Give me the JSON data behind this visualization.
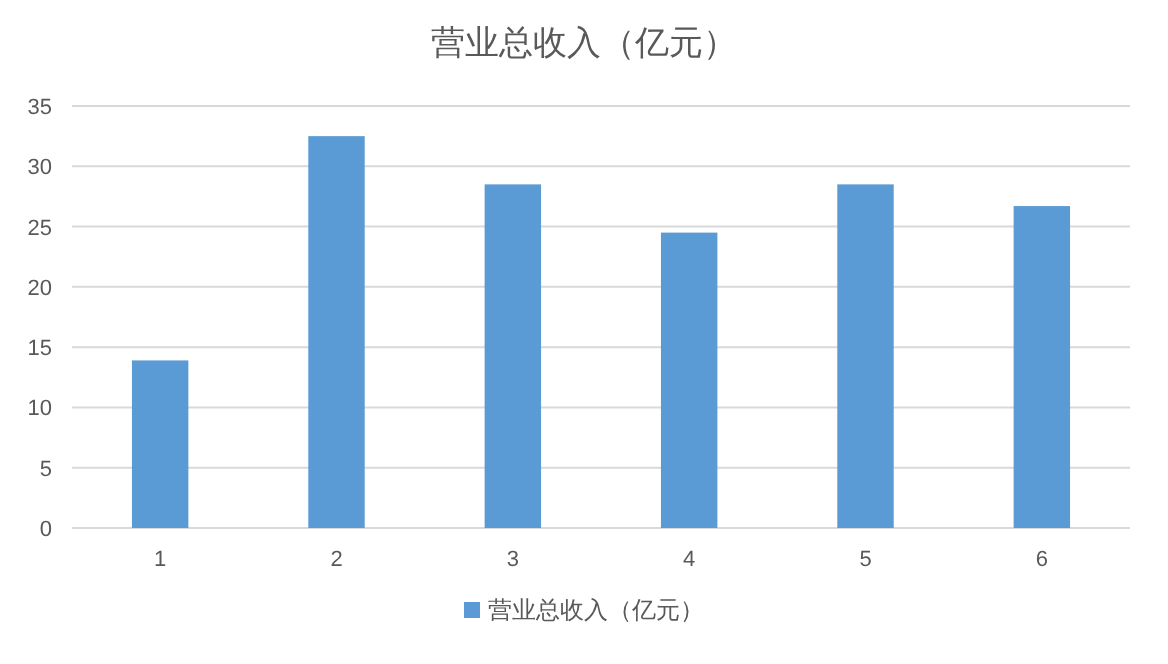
{
  "chart_data": {
    "type": "bar",
    "title": "营业总收入（亿元）",
    "categories": [
      "1",
      "2",
      "3",
      "4",
      "5",
      "6"
    ],
    "series": [
      {
        "name": "营业总收入（亿元）",
        "color": "#5b9bd5",
        "values": [
          13.9,
          32.5,
          28.5,
          24.5,
          28.5,
          26.7
        ]
      }
    ],
    "ylim": [
      0,
      35
    ],
    "yticks": [
      0,
      5,
      10,
      15,
      20,
      25,
      30,
      35
    ],
    "grid": "y",
    "legend": "bottom"
  }
}
